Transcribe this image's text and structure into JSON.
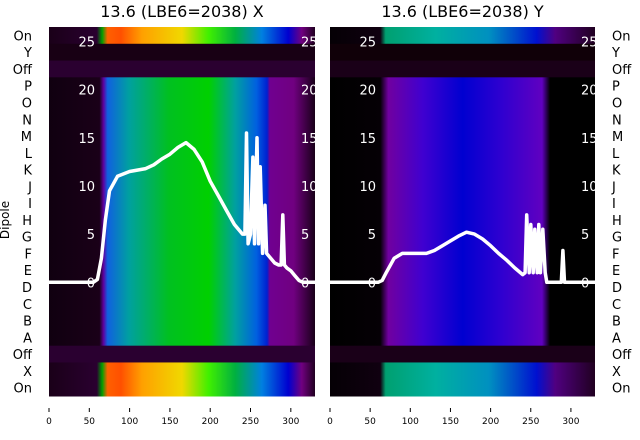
{
  "chart_data": [
    {
      "type": "heatmap",
      "title": "13.6 (LBE6=2038) X",
      "ylabel": "Dipole",
      "row_labels": [
        "On",
        "Y",
        "Off",
        "P",
        "O",
        "N",
        "M",
        "L",
        "K",
        "J",
        "I",
        "H",
        "G",
        "F",
        "E",
        "D",
        "C",
        "B",
        "A",
        "Off",
        "X",
        "On"
      ],
      "x_ticks": [
        0,
        50,
        100,
        150,
        200,
        250,
        300
      ],
      "xlim": [
        0,
        330
      ],
      "overlay_y_ticks": [
        0,
        5,
        10,
        15,
        20,
        25
      ],
      "overlay_ylim": [
        -11.8,
        26.5
      ],
      "line": {
        "x": [
          0,
          55,
          60,
          65,
          70,
          75,
          85,
          100,
          120,
          130,
          140,
          150,
          160,
          170,
          180,
          190,
          200,
          210,
          220,
          230,
          240,
          243,
          245,
          247,
          250,
          253,
          255,
          258,
          260,
          262,
          265,
          268,
          270,
          275,
          280,
          285,
          288,
          290,
          292,
          295,
          300,
          305,
          310,
          315,
          320,
          330
        ],
        "y": [
          0,
          0,
          0.3,
          2.5,
          6.5,
          9.5,
          11,
          11.5,
          11.8,
          12.2,
          12.8,
          13.3,
          14,
          14.5,
          13.8,
          12.5,
          10.5,
          9,
          7.5,
          6,
          5,
          5,
          15.5,
          4,
          5,
          13,
          4,
          15,
          4,
          12,
          3,
          8,
          3,
          2.5,
          2,
          1.8,
          1.8,
          7,
          1.8,
          1.5,
          1.2,
          0.7,
          0.2,
          0,
          0,
          0
        ]
      }
    },
    {
      "type": "heatmap",
      "title": "13.6 (LBE6=2038) Y",
      "row_labels": [
        "On",
        "Y",
        "Off",
        "P",
        "O",
        "N",
        "M",
        "L",
        "K",
        "J",
        "I",
        "H",
        "G",
        "F",
        "E",
        "D",
        "C",
        "B",
        "A",
        "Off",
        "X",
        "On"
      ],
      "x_ticks": [
        0,
        50,
        100,
        150,
        200,
        250,
        300
      ],
      "xlim": [
        0,
        330
      ],
      "overlay_y_ticks": [
        0,
        5,
        10,
        15,
        20,
        25
      ],
      "overlay_ylim": [
        -11.8,
        26.5
      ],
      "line": {
        "x": [
          0,
          60,
          65,
          70,
          80,
          90,
          100,
          120,
          130,
          140,
          150,
          160,
          170,
          180,
          190,
          200,
          210,
          220,
          230,
          240,
          243,
          245,
          248,
          250,
          253,
          255,
          258,
          260,
          262,
          265,
          268,
          270,
          285,
          288,
          290,
          292,
          295,
          330
        ],
        "y": [
          0,
          0,
          0.2,
          1,
          2.5,
          3,
          3,
          3,
          3.3,
          3.8,
          4.3,
          4.8,
          5.2,
          5,
          4.5,
          3.8,
          3,
          2.3,
          1.5,
          0.8,
          1,
          7,
          1,
          6,
          1,
          5.5,
          1,
          6,
          1,
          5.5,
          1,
          0,
          0,
          0,
          3.3,
          0,
          0,
          0
        ]
      }
    }
  ]
}
